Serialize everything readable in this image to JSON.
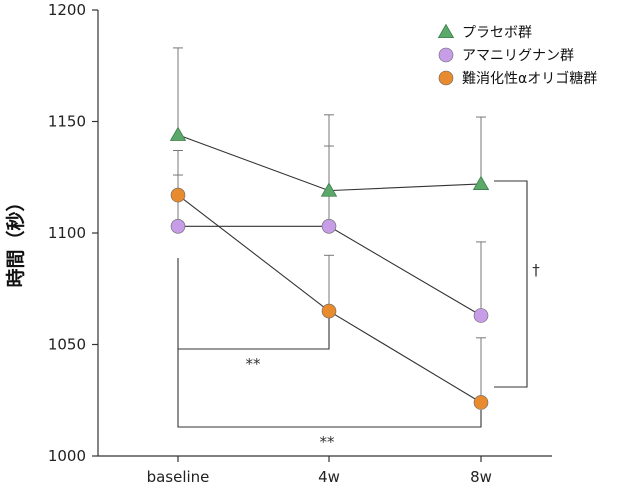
{
  "chart_data": {
    "type": "line",
    "title": "",
    "xlabel": "",
    "ylabel": "時間（秒）",
    "categories": [
      "baseline",
      "4w",
      "8w"
    ],
    "ylim": [
      1000,
      1200
    ],
    "yticks": [
      1000,
      1050,
      1100,
      1150,
      1200
    ],
    "grid": false,
    "legend_position": "top-right",
    "series": [
      {
        "name": "プラセボ群",
        "marker": "triangle",
        "color": "#5aa86a",
        "values": [
          1144,
          1119,
          1122
        ],
        "error_upper": [
          1183,
          1153,
          1152
        ]
      },
      {
        "name": "アマニリグナン群",
        "marker": "circle",
        "color": "#c79de8",
        "values": [
          1103,
          1103,
          1063
        ],
        "error_upper": [
          1126,
          1139,
          1096
        ]
      },
      {
        "name": "難消化性αオリゴ糖群",
        "marker": "circle",
        "color": "#e88a2e",
        "values": [
          1117,
          1065,
          1024
        ],
        "error_upper": [
          1137,
          1090,
          1053
        ]
      }
    ],
    "annotations": [
      {
        "label": "**",
        "from": "baseline",
        "to": "4w"
      },
      {
        "label": "**",
        "from": "baseline",
        "to": "8w"
      },
      {
        "label": "†",
        "between": "8w"
      }
    ]
  }
}
